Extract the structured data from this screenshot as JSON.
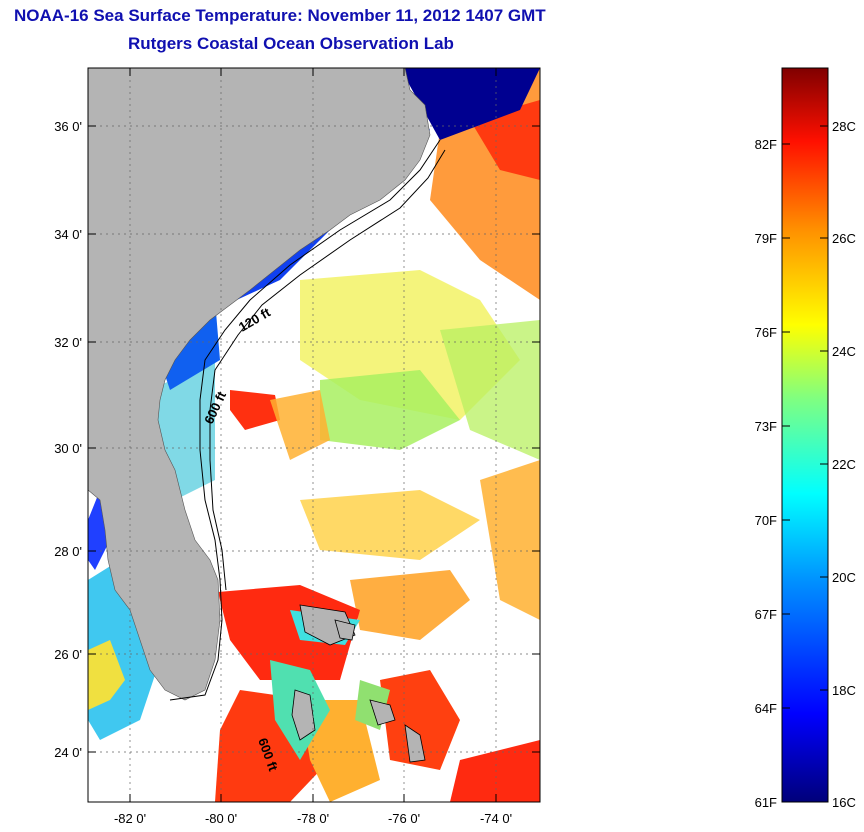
{
  "header": {
    "title": "NOAA-16 Sea Surface Temperature:  November 11, 2012 1407 GMT",
    "subtitle": "Rutgers Coastal Ocean Observation Lab"
  },
  "map": {
    "lat_labels": [
      "36 0'",
      "34 0'",
      "32 0'",
      "30 0'",
      "28 0'",
      "26 0'",
      "24 0'"
    ],
    "lon_labels": [
      "-82 0'",
      "-80 0'",
      "-78 0'",
      "-76 0'",
      "-74 0'"
    ],
    "contours": [
      "120 ft",
      "600 ft",
      "600 ft"
    ]
  },
  "colorbar": {
    "fahrenheit": [
      "82F",
      "79F",
      "76F",
      "73F",
      "70F",
      "67F",
      "64F",
      "61F"
    ],
    "celsius": [
      "28C",
      "26C",
      "24C",
      "22C",
      "20C",
      "18C",
      "16C"
    ]
  },
  "colors": {
    "title": "#1010b0",
    "land": "#b4b4b4",
    "cloud": "#ffffff"
  }
}
